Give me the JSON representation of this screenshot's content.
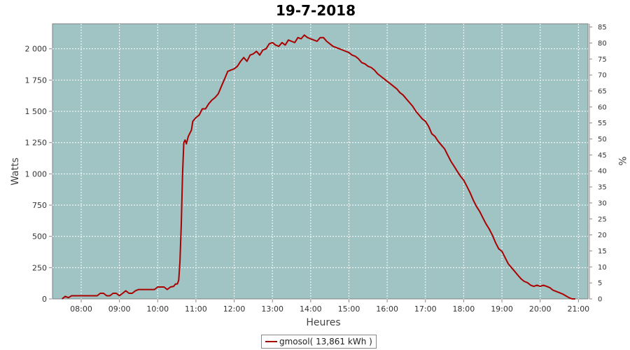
{
  "colors": {
    "plot_bg": "#a0c4c4",
    "series": "#aa0000",
    "grid": "#ffffff"
  },
  "chart_data": {
    "type": "line",
    "title": "19-7-2018",
    "xlabel": "Heures",
    "ylabel": "Watts",
    "y2label": "%",
    "xlim": [
      "07:15",
      "21:15"
    ],
    "ylim": [
      0,
      2200
    ],
    "y2lim": [
      0,
      86
    ],
    "x_ticks": [
      "08:00",
      "09:00",
      "10:00",
      "11:00",
      "12:00",
      "13:00",
      "14:00",
      "15:00",
      "16:00",
      "17:00",
      "18:00",
      "19:00",
      "20:00",
      "21:00"
    ],
    "y_ticks": [
      0,
      250,
      500,
      750,
      1000,
      1250,
      1500,
      1750,
      2000
    ],
    "y_tick_labels": [
      "0",
      "250",
      "500",
      "750",
      "1 000",
      "1 250",
      "1 500",
      "1 750",
      "2 000"
    ],
    "y2_ticks": [
      0,
      5,
      10,
      15,
      20,
      25,
      30,
      35,
      40,
      45,
      50,
      55,
      60,
      65,
      70,
      75,
      80,
      85
    ],
    "grid": true,
    "legend_position": "bottom",
    "series": [
      {
        "name": "gmosol( 13,861 kWh )",
        "points": [
          [
            "07:30",
            0
          ],
          [
            "07:35",
            20
          ],
          [
            "07:40",
            10
          ],
          [
            "07:45",
            25
          ],
          [
            "07:50",
            25
          ],
          [
            "08:00",
            25
          ],
          [
            "08:10",
            25
          ],
          [
            "08:20",
            25
          ],
          [
            "08:25",
            25
          ],
          [
            "08:30",
            45
          ],
          [
            "08:35",
            45
          ],
          [
            "08:40",
            25
          ],
          [
            "08:45",
            25
          ],
          [
            "08:50",
            45
          ],
          [
            "08:55",
            45
          ],
          [
            "09:00",
            25
          ],
          [
            "09:05",
            45
          ],
          [
            "09:10",
            65
          ],
          [
            "09:15",
            45
          ],
          [
            "09:20",
            45
          ],
          [
            "09:25",
            65
          ],
          [
            "09:30",
            75
          ],
          [
            "09:40",
            75
          ],
          [
            "09:50",
            75
          ],
          [
            "09:55",
            75
          ],
          [
            "10:00",
            95
          ],
          [
            "10:05",
            95
          ],
          [
            "10:10",
            95
          ],
          [
            "10:15",
            75
          ],
          [
            "10:20",
            95
          ],
          [
            "10:25",
            100
          ],
          [
            "10:28",
            120
          ],
          [
            "10:31",
            120
          ],
          [
            "10:33",
            150
          ],
          [
            "10:35",
            300
          ],
          [
            "10:37",
            600
          ],
          [
            "10:39",
            1000
          ],
          [
            "10:41",
            1250
          ],
          [
            "10:43",
            1270
          ],
          [
            "10:45",
            1240
          ],
          [
            "10:48",
            1300
          ],
          [
            "10:50",
            1320
          ],
          [
            "10:53",
            1350
          ],
          [
            "10:55",
            1420
          ],
          [
            "11:00",
            1450
          ],
          [
            "11:05",
            1470
          ],
          [
            "11:10",
            1520
          ],
          [
            "11:15",
            1520
          ],
          [
            "11:20",
            1560
          ],
          [
            "11:25",
            1590
          ],
          [
            "11:30",
            1610
          ],
          [
            "11:35",
            1640
          ],
          [
            "11:40",
            1700
          ],
          [
            "11:45",
            1760
          ],
          [
            "11:50",
            1820
          ],
          [
            "11:55",
            1830
          ],
          [
            "12:00",
            1840
          ],
          [
            "12:05",
            1860
          ],
          [
            "12:10",
            1900
          ],
          [
            "12:15",
            1930
          ],
          [
            "12:20",
            1900
          ],
          [
            "12:25",
            1950
          ],
          [
            "12:30",
            1960
          ],
          [
            "12:35",
            1980
          ],
          [
            "12:40",
            1950
          ],
          [
            "12:45",
            1990
          ],
          [
            "12:50",
            2000
          ],
          [
            "12:55",
            2040
          ],
          [
            "13:00",
            2050
          ],
          [
            "13:05",
            2030
          ],
          [
            "13:10",
            2020
          ],
          [
            "13:15",
            2050
          ],
          [
            "13:20",
            2030
          ],
          [
            "13:25",
            2070
          ],
          [
            "13:30",
            2060
          ],
          [
            "13:35",
            2050
          ],
          [
            "13:40",
            2090
          ],
          [
            "13:45",
            2080
          ],
          [
            "13:50",
            2110
          ],
          [
            "13:55",
            2090
          ],
          [
            "14:00",
            2080
          ],
          [
            "14:05",
            2070
          ],
          [
            "14:10",
            2060
          ],
          [
            "14:15",
            2090
          ],
          [
            "14:20",
            2090
          ],
          [
            "14:25",
            2060
          ],
          [
            "14:30",
            2040
          ],
          [
            "14:35",
            2020
          ],
          [
            "14:40",
            2010
          ],
          [
            "14:45",
            2000
          ],
          [
            "14:50",
            1990
          ],
          [
            "14:55",
            1980
          ],
          [
            "15:00",
            1970
          ],
          [
            "15:05",
            1950
          ],
          [
            "15:10",
            1940
          ],
          [
            "15:15",
            1920
          ],
          [
            "15:20",
            1890
          ],
          [
            "15:25",
            1880
          ],
          [
            "15:30",
            1860
          ],
          [
            "15:35",
            1850
          ],
          [
            "15:40",
            1830
          ],
          [
            "15:45",
            1800
          ],
          [
            "15:50",
            1780
          ],
          [
            "15:55",
            1760
          ],
          [
            "16:00",
            1740
          ],
          [
            "16:05",
            1720
          ],
          [
            "16:10",
            1700
          ],
          [
            "16:15",
            1680
          ],
          [
            "16:20",
            1650
          ],
          [
            "16:25",
            1630
          ],
          [
            "16:30",
            1600
          ],
          [
            "16:35",
            1570
          ],
          [
            "16:40",
            1540
          ],
          [
            "16:45",
            1500
          ],
          [
            "16:50",
            1470
          ],
          [
            "16:55",
            1440
          ],
          [
            "17:00",
            1420
          ],
          [
            "17:05",
            1380
          ],
          [
            "17:10",
            1320
          ],
          [
            "17:15",
            1300
          ],
          [
            "17:20",
            1260
          ],
          [
            "17:25",
            1230
          ],
          [
            "17:30",
            1200
          ],
          [
            "17:35",
            1150
          ],
          [
            "17:40",
            1100
          ],
          [
            "17:45",
            1060
          ],
          [
            "17:50",
            1020
          ],
          [
            "17:55",
            980
          ],
          [
            "18:00",
            950
          ],
          [
            "18:05",
            900
          ],
          [
            "18:10",
            850
          ],
          [
            "18:15",
            790
          ],
          [
            "18:20",
            740
          ],
          [
            "18:25",
            700
          ],
          [
            "18:30",
            650
          ],
          [
            "18:35",
            600
          ],
          [
            "18:40",
            560
          ],
          [
            "18:45",
            510
          ],
          [
            "18:50",
            450
          ],
          [
            "18:55",
            400
          ],
          [
            "19:00",
            380
          ],
          [
            "19:05",
            330
          ],
          [
            "19:10",
            280
          ],
          [
            "19:15",
            250
          ],
          [
            "19:20",
            220
          ],
          [
            "19:25",
            190
          ],
          [
            "19:30",
            160
          ],
          [
            "19:35",
            140
          ],
          [
            "19:40",
            130
          ],
          [
            "19:45",
            110
          ],
          [
            "19:50",
            100
          ],
          [
            "19:55",
            110
          ],
          [
            "20:00",
            100
          ],
          [
            "20:05",
            110
          ],
          [
            "20:10",
            100
          ],
          [
            "20:15",
            90
          ],
          [
            "20:20",
            70
          ],
          [
            "20:25",
            60
          ],
          [
            "20:30",
            50
          ],
          [
            "20:35",
            40
          ],
          [
            "20:40",
            25
          ],
          [
            "20:45",
            10
          ],
          [
            "20:50",
            0
          ],
          [
            "20:55",
            0
          ]
        ]
      }
    ]
  }
}
